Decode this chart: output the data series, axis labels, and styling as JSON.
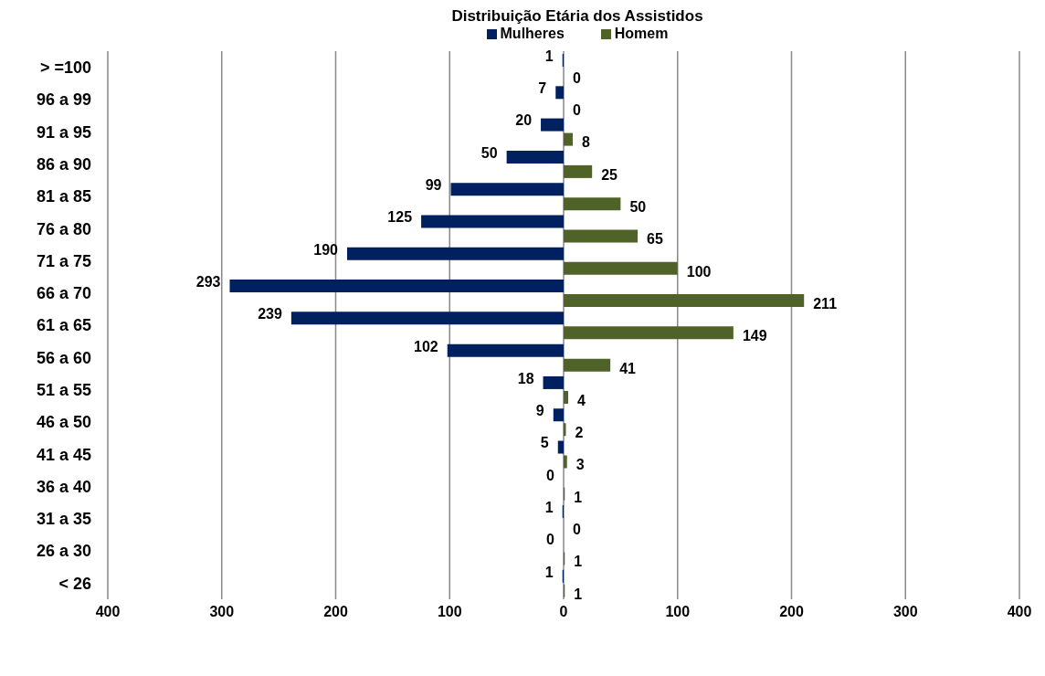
{
  "chart_data": {
    "type": "bar",
    "orientation": "horizontal",
    "title": "Distribuição Etária dos Assistidos",
    "categories": [
      "> =100",
      "96 a 99",
      "91 a 95 ",
      "86 a 90",
      "81 a 85",
      "76 a 80",
      "71 a 75",
      "66 a 70",
      "61 a 65",
      "56 a 60",
      "51 a 55",
      "46 a 50",
      "41 a 45",
      "36 a 40 ",
      "31 a 35",
      "26 a 30",
      "< 26"
    ],
    "series": [
      {
        "name": "Mulheres",
        "color": "#002060",
        "values": [
          1,
          7,
          20,
          50,
          99,
          125,
          190,
          293,
          239,
          102,
          18,
          9,
          5,
          0,
          1,
          0,
          1
        ],
        "base": [
          -1,
          -7,
          -20,
          -50,
          -99,
          -125,
          -190,
          -293,
          -239,
          -102,
          -18,
          -9,
          -5,
          null,
          -1,
          null,
          -1
        ]
      },
      {
        "name": "Homem",
        "color": "#4f6228",
        "values": [
          0,
          0,
          8,
          25,
          50,
          65,
          100,
          211,
          149,
          41,
          4,
          2,
          3,
          1,
          0,
          1,
          1
        ]
      }
    ],
    "xlim": [
      -400,
      400
    ],
    "xticks": [
      {
        "value": -400,
        "label": "400"
      },
      {
        "value": -300,
        "label": "300"
      },
      {
        "value": -200,
        "label": "200"
      },
      {
        "value": -100,
        "label": "100"
      },
      0,
      100,
      200,
      300,
      400
    ],
    "data_labels": true,
    "grid": "x",
    "legend": "top"
  }
}
